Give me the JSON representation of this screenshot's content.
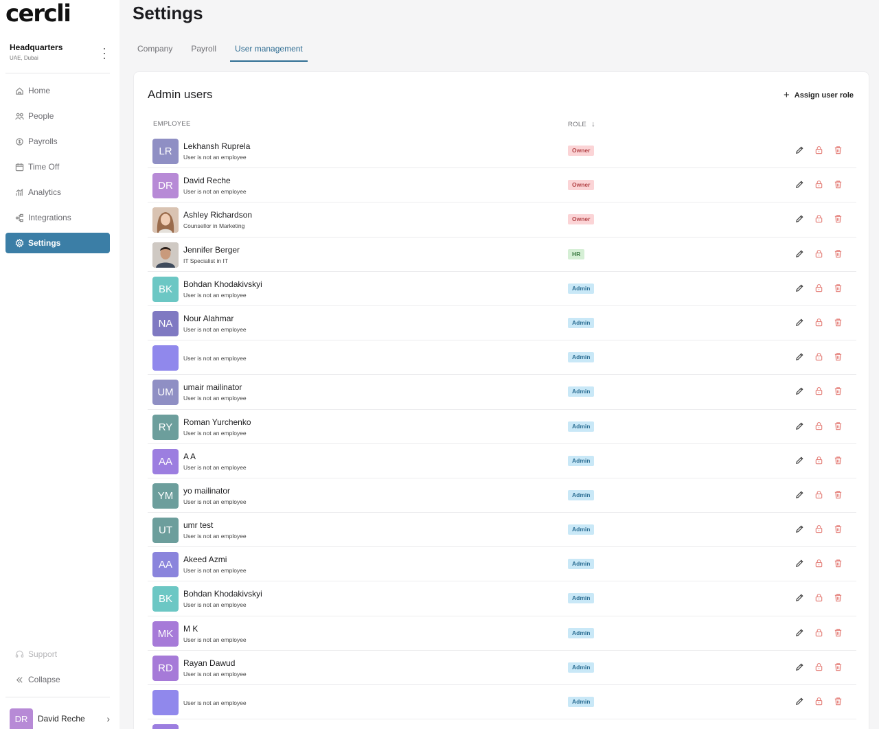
{
  "brand": {
    "logo": "cercli",
    "accent": "#3b7ea6"
  },
  "org": {
    "name": "Headquarters",
    "location": "UAE, Dubai"
  },
  "nav": [
    {
      "label": "Home",
      "icon": "home-icon"
    },
    {
      "label": "People",
      "icon": "people-icon"
    },
    {
      "label": "Payrolls",
      "icon": "payroll-icon"
    },
    {
      "label": "Time Off",
      "icon": "calendar-icon"
    },
    {
      "label": "Analytics",
      "icon": "analytics-icon"
    },
    {
      "label": "Integrations",
      "icon": "integrations-icon"
    },
    {
      "label": "Settings",
      "icon": "gear-icon",
      "active": true
    }
  ],
  "footer_nav": {
    "support": "Support",
    "collapse": "Collapse"
  },
  "current_user": {
    "initials": "DR",
    "name": "David Reche"
  },
  "page": {
    "title": "Settings"
  },
  "tabs": [
    {
      "label": "Company"
    },
    {
      "label": "Payroll"
    },
    {
      "label": "User management",
      "active": true
    }
  ],
  "card": {
    "title": "Admin users",
    "assign_label": "Assign user role"
  },
  "table": {
    "col_employee": "EMPLOYEE",
    "col_role": "ROLE"
  },
  "users": [
    {
      "initials": "LR",
      "color": "#8f8fc4",
      "name": "Lekhansh Ruprela",
      "sub": "User is not an employee",
      "role": "Owner",
      "kind": "owner"
    },
    {
      "initials": "DR",
      "color": "#b78ad6",
      "name": "David Reche",
      "sub": "User is not an employee",
      "role": "Owner",
      "kind": "owner"
    },
    {
      "initials": "",
      "color": "#c8a892",
      "photo": "woman",
      "name": "Ashley Richardson",
      "sub": "Counsellor in Marketing",
      "role": "Owner",
      "kind": "owner"
    },
    {
      "initials": "",
      "color": "#a9a4a0",
      "photo": "man",
      "name": "Jennifer Berger",
      "sub": "IT Specialist in IT",
      "role": "HR",
      "kind": "hr"
    },
    {
      "initials": "BK",
      "color": "#6cc7c4",
      "name": "Bohdan Khodakivskyi",
      "sub": "User is not an employee",
      "role": "Admin",
      "kind": "admin"
    },
    {
      "initials": "NA",
      "color": "#7f79c2",
      "name": "Nour Alahmar",
      "sub": "User is not an employee",
      "role": "Admin",
      "kind": "admin"
    },
    {
      "initials": "",
      "color": "#9088ec",
      "name": "",
      "sub": "User is not an employee",
      "role": "Admin",
      "kind": "admin"
    },
    {
      "initials": "UM",
      "color": "#8f8fc4",
      "name": "umair mailinator",
      "sub": "User is not an employee",
      "role": "Admin",
      "kind": "admin"
    },
    {
      "initials": "RY",
      "color": "#6c9e9c",
      "name": "Roman Yurchenko",
      "sub": "User is not an employee",
      "role": "Admin",
      "kind": "admin"
    },
    {
      "initials": "AA",
      "color": "#9c7ee0",
      "name": "A A",
      "sub": "User is not an employee",
      "role": "Admin",
      "kind": "admin"
    },
    {
      "initials": "YM",
      "color": "#6c9e9c",
      "name": "yo mailinator",
      "sub": "User is not an employee",
      "role": "Admin",
      "kind": "admin"
    },
    {
      "initials": "UT",
      "color": "#6c9e9c",
      "name": "umr test",
      "sub": "User is not an employee",
      "role": "Admin",
      "kind": "admin"
    },
    {
      "initials": "AA",
      "color": "#8a84dc",
      "name": "Akeed Azmi",
      "sub": "User is not an employee",
      "role": "Admin",
      "kind": "admin"
    },
    {
      "initials": "BK",
      "color": "#6cc7c4",
      "name": "Bohdan Khodakivskyi",
      "sub": "User is not an employee",
      "role": "Admin",
      "kind": "admin"
    },
    {
      "initials": "MK",
      "color": "#a67ad8",
      "name": "M K",
      "sub": "User is not an employee",
      "role": "Admin",
      "kind": "admin"
    },
    {
      "initials": "RD",
      "color": "#a67ad8",
      "name": "Rayan Dawud",
      "sub": "User is not an employee",
      "role": "Admin",
      "kind": "admin"
    },
    {
      "initials": "",
      "color": "#9088ec",
      "name": "",
      "sub": "User is not an employee",
      "role": "Admin",
      "kind": "admin"
    },
    {
      "initials": "",
      "color": "#9c7ee0",
      "name": "",
      "sub": "",
      "role": "",
      "kind": "partial"
    }
  ]
}
